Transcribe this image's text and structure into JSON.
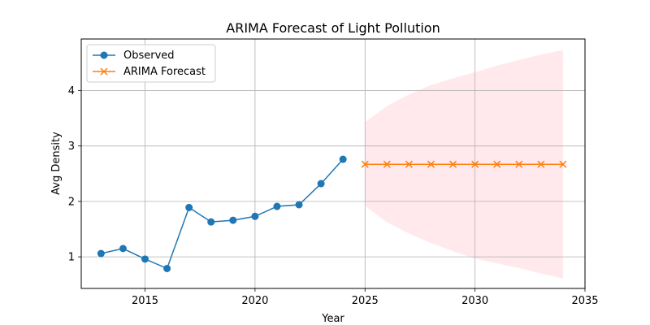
{
  "chart_data": {
    "type": "line",
    "title": "ARIMA Forecast of Light Pollution",
    "xlabel": "Year",
    "ylabel": "Avg Density",
    "xlim": [
      2012.1,
      2035
    ],
    "ylim": [
      0.43,
      4.93
    ],
    "xticks": [
      2015,
      2020,
      2025,
      2030,
      2035
    ],
    "yticks": [
      1,
      2,
      3,
      4
    ],
    "grid": true,
    "legend_position": "top-left",
    "series": [
      {
        "name": "Observed",
        "color": "#1f77b4",
        "marker": "circle",
        "x": [
          2013,
          2014,
          2015,
          2016,
          2017,
          2018,
          2019,
          2020,
          2021,
          2022,
          2023,
          2024
        ],
        "y": [
          1.06,
          1.15,
          0.96,
          0.79,
          1.89,
          1.63,
          1.66,
          1.73,
          1.91,
          1.94,
          2.32,
          2.76
        ]
      },
      {
        "name": "ARIMA Forecast",
        "color": "#ff7f0e",
        "marker": "x",
        "x": [
          2025,
          2026,
          2027,
          2028,
          2029,
          2030,
          2031,
          2032,
          2033,
          2034
        ],
        "y": [
          2.67,
          2.67,
          2.67,
          2.67,
          2.67,
          2.67,
          2.67,
          2.67,
          2.67,
          2.67
        ]
      }
    ],
    "confidence_band": {
      "color": "#ffc0cb",
      "x": [
        2025,
        2026,
        2027,
        2028,
        2029,
        2030,
        2031,
        2032,
        2033,
        2034
      ],
      "lower": [
        1.92,
        1.62,
        1.42,
        1.25,
        1.1,
        0.97,
        0.88,
        0.8,
        0.7,
        0.61
      ],
      "upper": [
        3.43,
        3.72,
        3.93,
        4.1,
        4.22,
        4.33,
        4.45,
        4.55,
        4.65,
        4.73
      ]
    }
  }
}
